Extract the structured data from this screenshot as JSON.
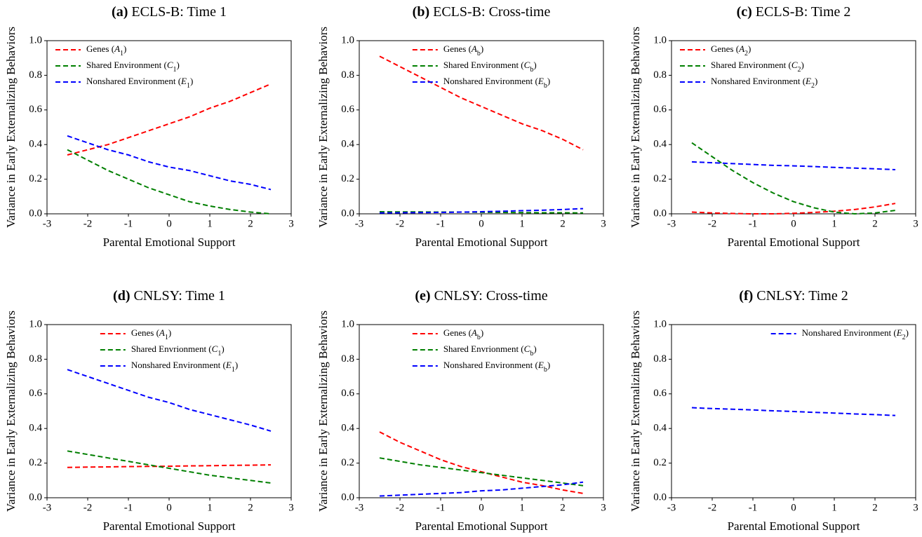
{
  "chart_data": [
    {
      "type": "line",
      "panel": "(a)",
      "title": "ECLS-B: Time 1",
      "xlabel": "Parental Emotional Support",
      "ylabel": "Variance in Early Externalizing Behaviors",
      "legend": "upper left",
      "x": [
        -2.5,
        -2,
        -1.5,
        -1,
        -0.5,
        0,
        0.5,
        1,
        1.5,
        2,
        2.5
      ],
      "series": [
        {
          "name": "Genes (A1)",
          "color": "#ff0000",
          "values": [
            0.34,
            0.37,
            0.4,
            0.44,
            0.48,
            0.52,
            0.56,
            0.61,
            0.65,
            0.7,
            0.75
          ]
        },
        {
          "name": "Shared Environment (C1)",
          "color": "#007f00",
          "values": [
            0.37,
            0.31,
            0.25,
            0.2,
            0.15,
            0.11,
            0.07,
            0.045,
            0.025,
            0.01,
            0.0
          ]
        },
        {
          "name": "Nonshared Environment (E1)",
          "color": "#0000ff",
          "values": [
            0.45,
            0.41,
            0.37,
            0.34,
            0.3,
            0.27,
            0.25,
            0.22,
            0.19,
            0.17,
            0.14
          ]
        }
      ],
      "xlim": [
        -3,
        3
      ],
      "xticks": [
        -3,
        -2,
        -1,
        0,
        1,
        2,
        3
      ],
      "ylim": [
        0,
        1
      ],
      "yticks": [
        {
          "value": 0,
          "label": "0.0"
        },
        0.2,
        0.4,
        0.6,
        0.8,
        {
          "value": 1,
          "label": "1.0"
        }
      ]
    },
    {
      "type": "line",
      "panel": "(b)",
      "title": "ECLS-B: Cross-time",
      "xlabel": "Parental Emotional Support",
      "ylabel": "Variance in Early Externalizing Behaviors",
      "legend": "upper center",
      "x": [
        -2.5,
        -2,
        -1.5,
        -1,
        -0.5,
        0,
        0.5,
        1,
        1.5,
        2,
        2.5
      ],
      "series": [
        {
          "name": "Genes (Ab)",
          "color": "#ff0000",
          "values": [
            0.91,
            0.85,
            0.79,
            0.73,
            0.67,
            0.62,
            0.57,
            0.52,
            0.48,
            0.43,
            0.37
          ]
        },
        {
          "name": "Shared Environment (Cb)",
          "color": "#007f00",
          "values": [
            0.012,
            0.011,
            0.011,
            0.01,
            0.01,
            0.009,
            0.008,
            0.007,
            0.006,
            0.006,
            0.005
          ]
        },
        {
          "name": "Nonshared Environment (Eb)",
          "color": "#0000ff",
          "values": [
            0.005,
            0.006,
            0.007,
            0.008,
            0.01,
            0.012,
            0.015,
            0.018,
            0.021,
            0.025,
            0.03
          ]
        }
      ],
      "xlim": [
        -3,
        3
      ],
      "xticks": [
        -3,
        -2,
        -1,
        0,
        1,
        2,
        3
      ],
      "ylim": [
        0,
        1
      ],
      "yticks": [
        {
          "value": 0,
          "label": "0.0"
        },
        0.2,
        0.4,
        0.6,
        0.8,
        {
          "value": 1,
          "label": "1.0"
        }
      ]
    },
    {
      "type": "line",
      "panel": "(c)",
      "title": "ECLS-B: Time 2",
      "xlabel": "Parental Emotional Support",
      "ylabel": "Variance in Early Externalizing Behaviors",
      "legend": "upper left",
      "x": [
        -2.5,
        -2,
        -1.5,
        -1,
        -0.5,
        0,
        0.5,
        1,
        1.5,
        2,
        2.5
      ],
      "series": [
        {
          "name": "Genes (A2)",
          "color": "#ff0000",
          "values": [
            0.01,
            0.005,
            0.002,
            0.0,
            0.0,
            0.003,
            0.008,
            0.015,
            0.025,
            0.04,
            0.06
          ]
        },
        {
          "name": "Shared Environment (C2)",
          "color": "#007f00",
          "values": [
            0.41,
            0.33,
            0.25,
            0.18,
            0.12,
            0.07,
            0.035,
            0.01,
            0.0,
            0.005,
            0.02
          ]
        },
        {
          "name": "Nonshared Environment (E2)",
          "color": "#0000ff",
          "values": [
            0.3,
            0.295,
            0.29,
            0.285,
            0.28,
            0.277,
            0.273,
            0.268,
            0.264,
            0.26,
            0.255
          ]
        }
      ],
      "xlim": [
        -3,
        3
      ],
      "xticks": [
        -3,
        -2,
        -1,
        0,
        1,
        2,
        3
      ],
      "ylim": [
        0,
        1
      ],
      "yticks": [
        {
          "value": 0,
          "label": "0.0"
        },
        0.2,
        0.4,
        0.6,
        0.8,
        {
          "value": 1,
          "label": "1.0"
        }
      ]
    },
    {
      "type": "line",
      "panel": "(d)",
      "title": "CNLSY: Time 1",
      "xlabel": "Parental Emotional Support",
      "ylabel": "Variance in Early Externalizing Behaviors",
      "legend": "upper center",
      "x": [
        -2.5,
        -2,
        -1.5,
        -1,
        -0.5,
        0,
        0.5,
        1,
        1.5,
        2,
        2.5
      ],
      "series": [
        {
          "name": "Genes (A1)",
          "color": "#ff0000",
          "values": [
            0.175,
            0.177,
            0.178,
            0.18,
            0.181,
            0.182,
            0.184,
            0.185,
            0.187,
            0.188,
            0.19
          ]
        },
        {
          "name": "Shared Envrionment (C1)",
          "color": "#007f00",
          "values": [
            0.27,
            0.25,
            0.23,
            0.21,
            0.19,
            0.17,
            0.15,
            0.13,
            0.115,
            0.1,
            0.085
          ]
        },
        {
          "name": "Nonshared Environment (E1)",
          "color": "#0000ff",
          "values": [
            0.74,
            0.7,
            0.66,
            0.62,
            0.58,
            0.55,
            0.51,
            0.48,
            0.45,
            0.42,
            0.385
          ]
        }
      ],
      "xlim": [
        -3,
        3
      ],
      "xticks": [
        -3,
        -2,
        -1,
        0,
        1,
        2,
        3
      ],
      "ylim": [
        0,
        1
      ],
      "yticks": [
        {
          "value": 0,
          "label": "0.0"
        },
        0.2,
        0.4,
        0.6,
        0.8,
        {
          "value": 1,
          "label": "1.0"
        }
      ]
    },
    {
      "type": "line",
      "panel": "(e)",
      "title": "CNLSY: Cross-time",
      "xlabel": "Parental Emotional Support",
      "ylabel": "Variance in Early Externalizing Behaviors",
      "legend": "upper center",
      "x": [
        -2.5,
        -2,
        -1.5,
        -1,
        -0.5,
        0,
        0.5,
        1,
        1.5,
        2,
        2.5
      ],
      "series": [
        {
          "name": "Genes (Ab)",
          "color": "#ff0000",
          "values": [
            0.38,
            0.32,
            0.27,
            0.22,
            0.18,
            0.15,
            0.12,
            0.09,
            0.07,
            0.045,
            0.025
          ]
        },
        {
          "name": "Shared Envrionment (Cb)",
          "color": "#007f00",
          "values": [
            0.23,
            0.21,
            0.19,
            0.175,
            0.16,
            0.145,
            0.13,
            0.115,
            0.1,
            0.085,
            0.07
          ]
        },
        {
          "name": "Nonshared Environment (Eb)",
          "color": "#0000ff",
          "values": [
            0.01,
            0.015,
            0.02,
            0.025,
            0.03,
            0.04,
            0.045,
            0.055,
            0.065,
            0.075,
            0.09
          ]
        }
      ],
      "xlim": [
        -3,
        3
      ],
      "xticks": [
        -3,
        -2,
        -1,
        0,
        1,
        2,
        3
      ],
      "ylim": [
        0,
        1
      ],
      "yticks": [
        {
          "value": 0,
          "label": "0.0"
        },
        0.2,
        0.4,
        0.6,
        0.8,
        {
          "value": 1,
          "label": "1.0"
        }
      ]
    },
    {
      "type": "line",
      "panel": "(f)",
      "title": "CNLSY: Time 2",
      "xlabel": "Parental Emotional Support",
      "ylabel": "Variance in Early Externalizing Behaviors",
      "legend": "upper right",
      "x": [
        -2.5,
        -2,
        -1.5,
        -1,
        -0.5,
        0,
        0.5,
        1,
        1.5,
        2,
        2.5
      ],
      "series": [
        {
          "name": "Nonshared Environment (E2)",
          "color": "#0000ff",
          "values": [
            0.52,
            0.515,
            0.511,
            0.507,
            0.502,
            0.498,
            0.493,
            0.489,
            0.484,
            0.48,
            0.475
          ]
        }
      ],
      "xlim": [
        -3,
        3
      ],
      "xticks": [
        -3,
        -2,
        -1,
        0,
        1,
        2,
        3
      ],
      "ylim": [
        0,
        1
      ],
      "yticks": [
        {
          "value": 0,
          "label": "0.0"
        },
        0.2,
        0.4,
        0.6,
        0.8,
        {
          "value": 1,
          "label": "1.0"
        }
      ]
    }
  ]
}
